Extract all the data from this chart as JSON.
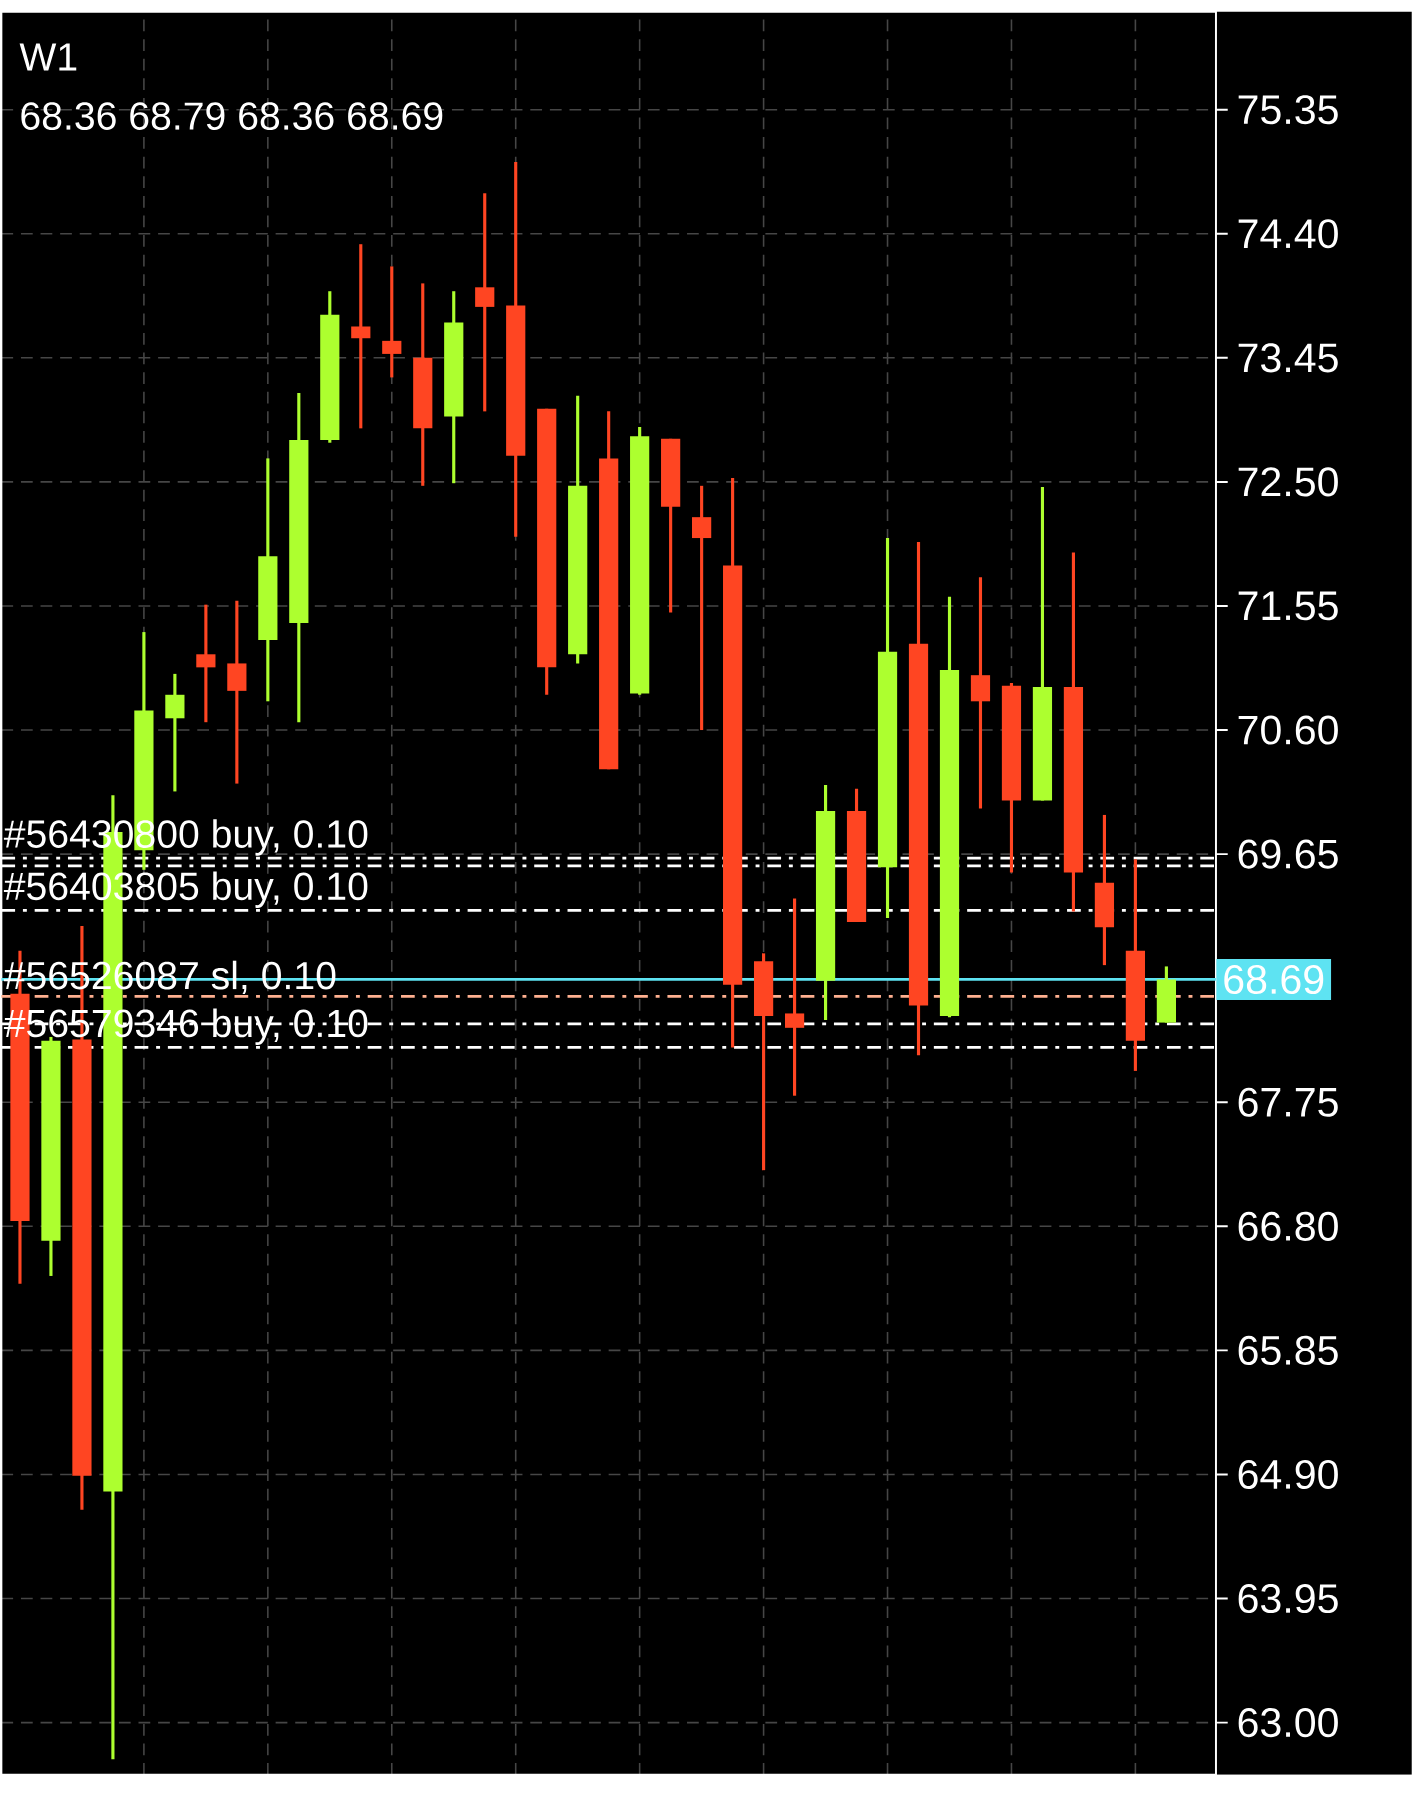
{
  "chart_data": {
    "type": "candlestick",
    "title": "W1",
    "subtitle": "68.36 68.79 68.36 68.69",
    "categories": [
      null,
      null,
      null,
      null,
      null,
      null,
      null,
      null,
      null,
      null,
      null,
      null,
      null,
      null,
      null,
      null,
      null,
      null,
      null,
      null,
      null,
      null,
      null,
      null,
      null,
      null,
      null,
      null,
      null,
      null,
      null,
      null,
      null,
      null,
      null,
      null,
      null,
      null
    ],
    "ohlc": [
      [
        68.58,
        68.91,
        66.36,
        66.84
      ],
      [
        66.69,
        68.25,
        66.42,
        68.22
      ],
      [
        68.23,
        69.1,
        64.63,
        64.89
      ],
      [
        64.77,
        70.1,
        62.72,
        69.82
      ],
      [
        69.68,
        71.35,
        69.53,
        70.75
      ],
      [
        70.69,
        71.03,
        70.13,
        70.87
      ],
      [
        71.18,
        71.56,
        70.66,
        71.08
      ],
      [
        71.11,
        71.59,
        70.19,
        70.9
      ],
      [
        71.29,
        72.68,
        70.82,
        71.93
      ],
      [
        71.42,
        73.18,
        70.66,
        72.82
      ],
      [
        72.82,
        73.96,
        72.8,
        73.78
      ],
      [
        73.69,
        74.32,
        72.91,
        73.6
      ],
      [
        73.58,
        74.15,
        73.3,
        73.48
      ],
      [
        73.45,
        74.02,
        72.47,
        72.91
      ],
      [
        73.0,
        73.96,
        72.49,
        73.72
      ],
      [
        73.99,
        74.71,
        73.04,
        73.84
      ],
      [
        73.85,
        74.95,
        72.08,
        72.7
      ],
      [
        73.06,
        73.06,
        70.87,
        71.08
      ],
      [
        71.18,
        73.16,
        71.11,
        72.47
      ],
      [
        72.68,
        73.04,
        70.3,
        70.3
      ],
      [
        70.88,
        72.92,
        70.87,
        72.85
      ],
      [
        72.83,
        72.83,
        71.5,
        72.31
      ],
      [
        72.23,
        72.47,
        70.6,
        72.07
      ],
      [
        71.86,
        72.53,
        68.17,
        68.65
      ],
      [
        68.83,
        68.89,
        67.23,
        68.41
      ],
      [
        68.43,
        69.31,
        67.8,
        68.32
      ],
      [
        68.68,
        70.18,
        68.38,
        69.98
      ],
      [
        69.98,
        70.15,
        69.13,
        69.13
      ],
      [
        69.55,
        72.07,
        69.16,
        71.2
      ],
      [
        71.26,
        72.04,
        68.11,
        68.49
      ],
      [
        68.41,
        71.62,
        68.4,
        71.06
      ],
      [
        71.02,
        71.77,
        70.0,
        70.82
      ],
      [
        70.94,
        70.96,
        69.51,
        70.06
      ],
      [
        70.06,
        72.46,
        70.06,
        70.93
      ],
      [
        70.93,
        71.96,
        69.21,
        69.51
      ],
      [
        69.43,
        69.95,
        68.8,
        69.09
      ],
      [
        68.91,
        69.61,
        67.99,
        68.22
      ],
      [
        68.36,
        68.79,
        68.36,
        68.69
      ]
    ],
    "colors": [
      "#ff4522",
      "#adff2f",
      "#ff4522",
      "#adff2f",
      "#adff2f",
      "#adff2f",
      "#ff4522",
      "#ff4522",
      "#adff2f",
      "#adff2f",
      "#adff2f",
      "#ff4522",
      "#ff4522",
      "#ff4522",
      "#adff2f",
      "#ff4522",
      "#ff4522",
      "#ff4522",
      "#adff2f",
      "#ff4522",
      "#adff2f",
      "#ff4522",
      "#ff4522",
      "#ff4522",
      "#ff4522",
      "#ff4522",
      "#adff2f",
      "#ff4522",
      "#adff2f",
      "#ff4522",
      "#adff2f",
      "#ff4522",
      "#ff4522",
      "#adff2f",
      "#ff4522",
      "#ff4522",
      "#ff4522",
      "#adff2f"
    ],
    "ylim": [
      62.6,
      76.1
    ],
    "yticks": [
      {
        "value": 63.0,
        "label": "63.00"
      },
      63.95,
      {
        "value": 64.9,
        "label": "64.90"
      },
      65.85,
      {
        "value": 66.8,
        "label": "66.80"
      },
      67.75,
      69.65,
      {
        "value": 70.6,
        "label": "70.60"
      },
      71.55,
      {
        "value": 72.5,
        "label": "72.50"
      },
      73.45,
      {
        "value": 74.4,
        "label": "74.40"
      },
      75.35
    ],
    "tick_labels": "y",
    "grid": true,
    "ref_lines": [
      {
        "axis": "y",
        "value": 69.62,
        "label": "#56430800 buy, 0.10",
        "color": "#ffffff",
        "line_style": "dashed"
      },
      {
        "axis": "y",
        "value": 69.56,
        "color": "#ffffff",
        "line_style": "dashed"
      },
      {
        "axis": "y",
        "value": 69.22,
        "label": "#56403805 buy, 0.10",
        "color": "#ffffff",
        "line_style": "dashed"
      },
      {
        "axis": "y",
        "value": 68.69,
        "label": "68.69",
        "color": "#5ee3f2",
        "line_style": "solid"
      },
      {
        "axis": "y",
        "value": 68.56,
        "label": "#56526087 sl, 0.10",
        "color": "#ffb090",
        "line_style": "dashed"
      },
      {
        "axis": "y",
        "value": 68.35,
        "color": "#ffffff",
        "line_style": "dashed"
      },
      {
        "axis": "y",
        "value": 68.17,
        "label": "#56579346 buy, 0.10",
        "color": "#ffffff",
        "line_style": "dashed"
      }
    ]
  }
}
